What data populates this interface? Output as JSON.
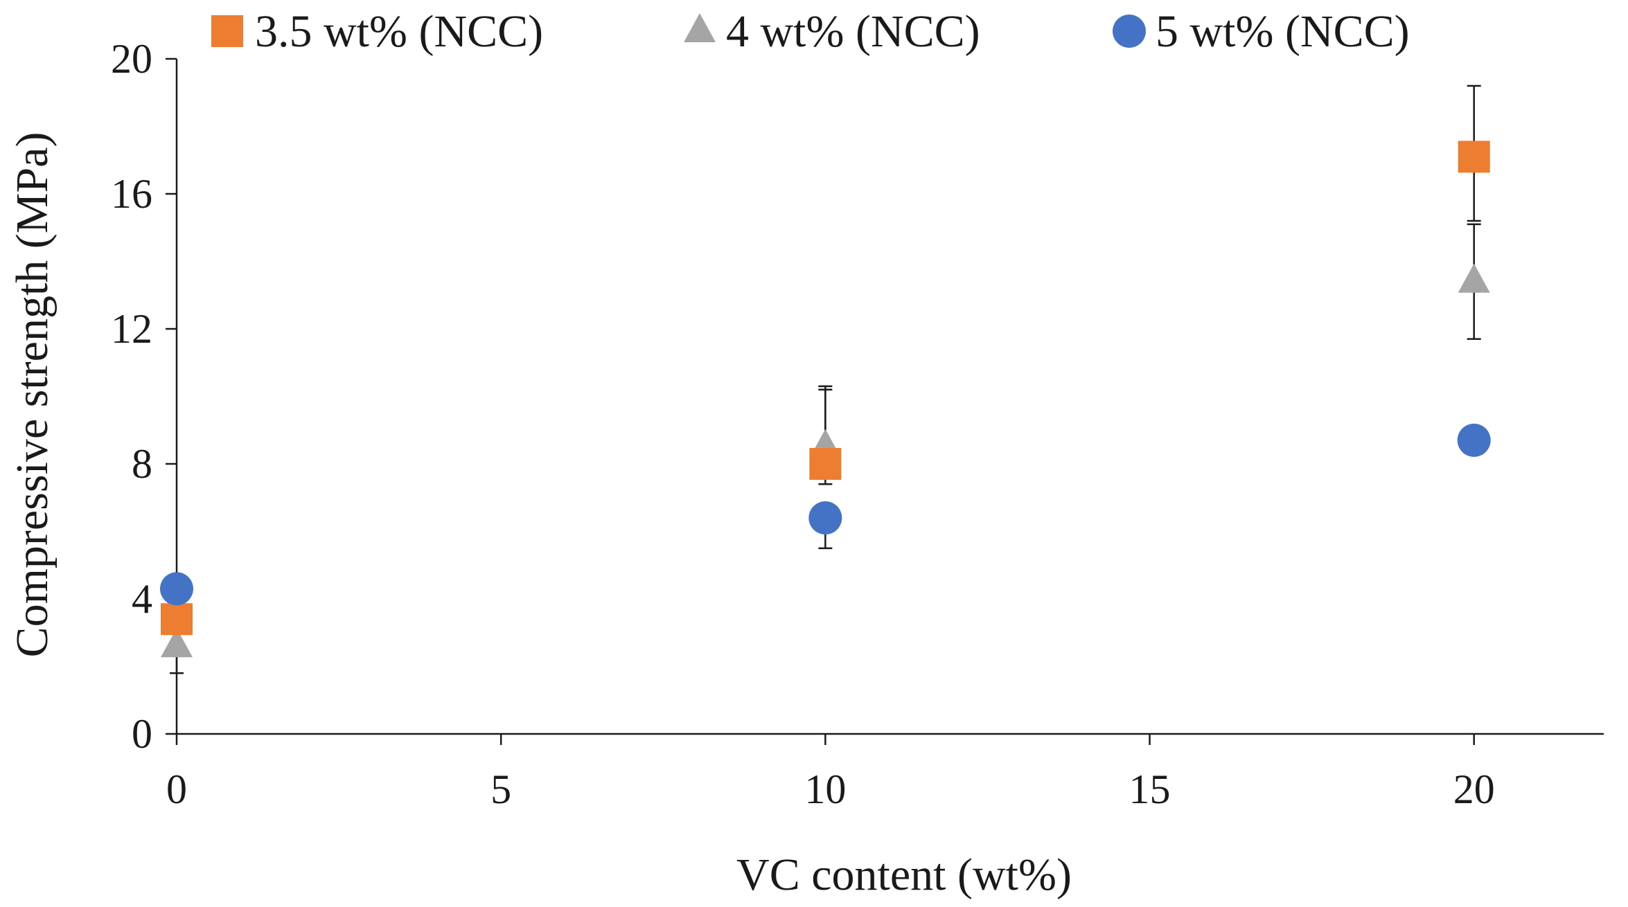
{
  "chart_data": {
    "type": "scatter",
    "title": "",
    "xlabel": "VC content (wt%)",
    "ylabel": "Compressive strength (MPa)",
    "xlim": [
      0,
      22
    ],
    "ylim": [
      0,
      20
    ],
    "xticks": [
      0,
      5,
      10,
      15,
      20
    ],
    "yticks": [
      0,
      4,
      8,
      12,
      16,
      20
    ],
    "xtick_labels": [
      "0",
      "5",
      "10",
      "15",
      "20"
    ],
    "ytick_labels": [
      "0",
      "4",
      "8",
      "12",
      "16",
      "20"
    ],
    "grid": false,
    "legend_position": "top",
    "series": [
      {
        "name": "3.5 wt% (NCC)",
        "marker": "square",
        "color": "#ED7D31",
        "x": [
          0,
          10,
          20
        ],
        "y": [
          3.4,
          8.0,
          17.1
        ],
        "err_low": [
          0.0,
          0.0,
          1.9
        ],
        "err_high": [
          0.0,
          2.3,
          2.1
        ]
      },
      {
        "name": "4 wt% (NCC)",
        "marker": "triangle",
        "color": "#A5A5A5",
        "x": [
          0,
          10,
          20
        ],
        "y": [
          2.6,
          8.5,
          13.4
        ],
        "err_low": [
          0.8,
          1.1,
          1.7
        ],
        "err_high": [
          0.0,
          1.7,
          1.7
        ]
      },
      {
        "name": "5 wt% (NCC)",
        "marker": "circle",
        "color": "#4472C4",
        "x": [
          0,
          10,
          20
        ],
        "y": [
          4.3,
          6.4,
          8.7
        ],
        "err_low": [
          0.0,
          0.9,
          0.0
        ],
        "err_high": [
          0.0,
          0.0,
          0.0
        ]
      }
    ]
  }
}
